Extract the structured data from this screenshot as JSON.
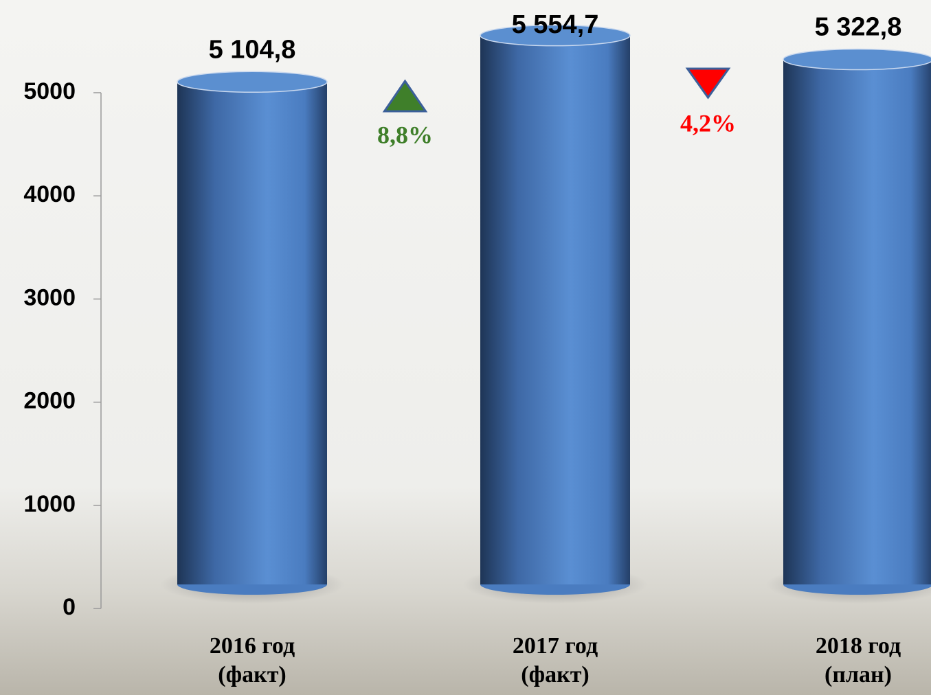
{
  "chart_data": {
    "type": "cylinder-bar",
    "categories": [
      "2016 год (факт)",
      "2017 год (факт)",
      "2018 год (план)"
    ],
    "values": [
      5104.8,
      5554.7,
      5322.8
    ],
    "value_labels": [
      "5 104,8",
      "5 554,7",
      "5 322,8"
    ],
    "color": "#4a7cc0",
    "ylim": [
      0,
      5600
    ],
    "yticks": [
      0,
      1000,
      2000,
      3000,
      4000,
      5000
    ],
    "annotations": [
      {
        "text": "8,8%",
        "color": "#3f7f2a",
        "marker": "up"
      },
      {
        "text": "4,2%",
        "color": "#ff0000",
        "marker": "down"
      }
    ]
  }
}
